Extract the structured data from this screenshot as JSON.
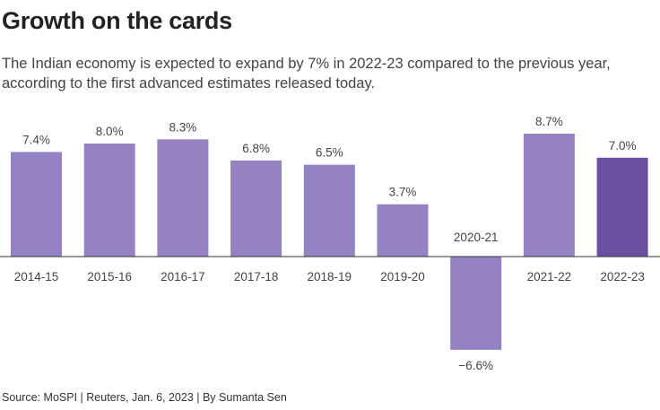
{
  "title": "Growth on the cards",
  "subtitle": "The Indian economy is expected to expand by 7% in 2022-23 compared to the previous year, according to the first advanced estimates released today.",
  "source": "Source: MoSPI | Reuters, Jan. 6, 2023 | By Sumanta Sen",
  "colors": {
    "bar": "#9482c2",
    "highlight": "#6b4fa2",
    "axis": "#333333"
  },
  "chart_data": {
    "type": "bar",
    "title": "Growth on the cards",
    "xlabel": "",
    "ylabel": "",
    "categories": [
      "2014-15",
      "2015-16",
      "2016-17",
      "2017-18",
      "2018-19",
      "2019-20",
      "2020-21",
      "2021-22",
      "2022-23"
    ],
    "values": [
      7.4,
      8.0,
      8.3,
      6.8,
      6.5,
      3.7,
      -6.6,
      8.7,
      7.0
    ],
    "value_labels": [
      "7.4%",
      "8.0%",
      "8.3%",
      "6.8%",
      "6.5%",
      "3.7%",
      "−6.6%",
      "8.7%",
      "7.0%"
    ],
    "highlight": "2022-23",
    "ylim": [
      -6.6,
      8.7
    ],
    "grid": false
  }
}
